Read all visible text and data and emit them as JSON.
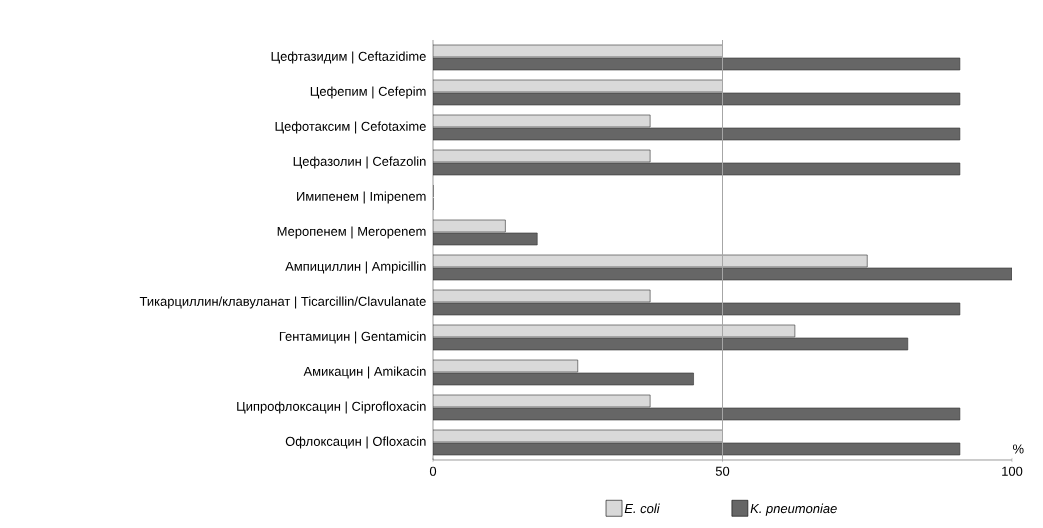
{
  "chart_data": {
    "type": "bar",
    "orientation": "horizontal",
    "categories": [
      "Цефтазидим | Ceftazidime",
      "Цефепим | Cefepim",
      "Цефотаксим | Cefotaxime",
      "Цефазолин | Cefazolin",
      "Имипенем | Imipenem",
      "Меропенем | Meropenem",
      "Ампициллин | Ampicillin",
      "Тикарциллин/клавуланат | Ticarcillin/Clavulanate",
      "Гентамицин | Gentamicin",
      "Амикацин | Amikacin",
      "Ципрофлоксацин | Ciprofloxacin",
      "Офлоксацин | Ofloxacin"
    ],
    "series": [
      {
        "name": "E. coli",
        "color": "#d9d9d9",
        "values": [
          50,
          50,
          37.5,
          37.5,
          0,
          12.5,
          75,
          37.5,
          62.5,
          25,
          37.5,
          50
        ]
      },
      {
        "name": "K. pneumoniae",
        "color": "#666666",
        "values": [
          91,
          91,
          91,
          91,
          0,
          18,
          100,
          91,
          82,
          45,
          91,
          91
        ]
      }
    ],
    "xlabel": "%",
    "xlim": [
      0,
      100
    ],
    "xticks": [
      0,
      50,
      100
    ],
    "ref_lines": [
      {
        "axis": "x",
        "value": 50,
        "color": "#a6a6a6"
      }
    ],
    "legend": "bottom"
  }
}
